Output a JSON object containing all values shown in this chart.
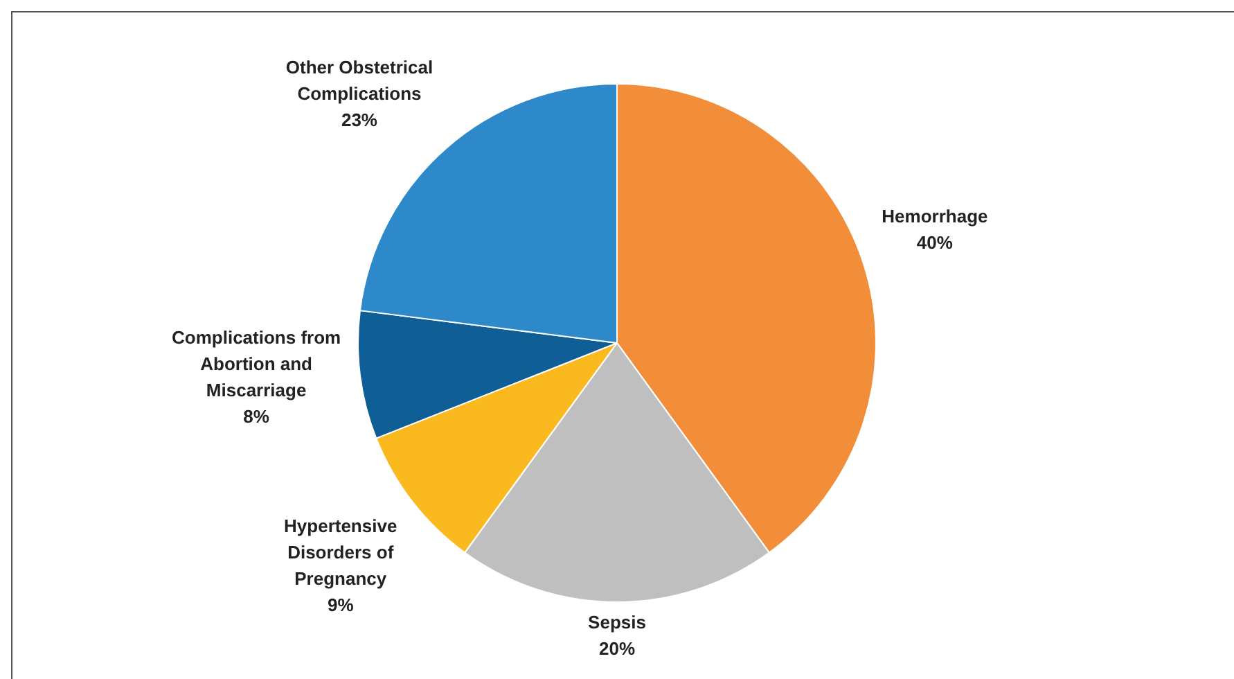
{
  "chart_data": {
    "type": "pie",
    "categories": [
      "Hemorrhage",
      "Sepsis",
      "Hypertensive Disorders of Pregnancy",
      "Complications from Abortion and Miscarriage",
      "Other Obstetrical Complications"
    ],
    "values": [
      40,
      20,
      9,
      8,
      23
    ],
    "colors": [
      "#f28e3a",
      "#bfbfbf",
      "#fbb920",
      "#0f5e96",
      "#2d89c9"
    ],
    "value_labels": [
      "40%",
      "20%",
      "9%",
      "8%",
      "23%"
    ],
    "legend": false
  }
}
